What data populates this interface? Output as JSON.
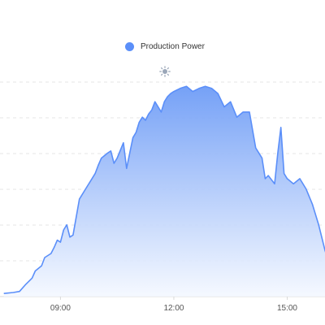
{
  "chart_data": {
    "type": "area",
    "title": "",
    "xlabel": "",
    "ylabel": "",
    "legend": {
      "position": "top",
      "entries": [
        "Production Power"
      ]
    },
    "weather_icon": "sun-icon",
    "colors": {
      "line": "#5b8ff9",
      "fill_top": "#6e9cf6",
      "fill_bottom": "#f4f8ff",
      "grid": "#e6e6e6"
    },
    "grid": true,
    "x_ticks": [
      "09:00",
      "12:00",
      "15:00"
    ],
    "series": [
      {
        "name": "Production Power",
        "x": [
          "07:30",
          "07:45",
          "07:55",
          "08:05",
          "08:15",
          "08:20",
          "08:30",
          "08:35",
          "08:45",
          "08:50",
          "08:55",
          "09:00",
          "09:05",
          "09:10",
          "09:15",
          "09:20",
          "09:30",
          "09:40",
          "09:50",
          "09:55",
          "10:00",
          "10:05",
          "10:15",
          "10:20",
          "10:25",
          "10:30",
          "10:40",
          "10:45",
          "10:50",
          "10:55",
          "11:00",
          "11:05",
          "11:10",
          "11:15",
          "11:20",
          "11:25",
          "11:30",
          "11:35",
          "11:40",
          "11:45",
          "11:50",
          "11:55",
          "12:00",
          "12:10",
          "12:20",
          "12:30",
          "12:40",
          "12:50",
          "13:00",
          "13:10",
          "13:20",
          "13:30",
          "13:40",
          "13:50",
          "14:00",
          "14:10",
          "14:15",
          "14:20",
          "14:25",
          "14:30",
          "14:40",
          "14:45",
          "14:50",
          "14:55",
          "15:00",
          "15:10",
          "15:20",
          "15:30",
          "15:40",
          "15:50",
          "16:00",
          "16:10",
          "16:15"
        ],
        "y": [
          3,
          4,
          5,
          12,
          18,
          25,
          30,
          38,
          42,
          48,
          55,
          53,
          65,
          70,
          58,
          60,
          95,
          105,
          115,
          120,
          128,
          135,
          140,
          142,
          130,
          135,
          150,
          125,
          140,
          155,
          160,
          170,
          175,
          172,
          178,
          182,
          190,
          185,
          180,
          190,
          195,
          198,
          200,
          203,
          205,
          200,
          203,
          205,
          203,
          198,
          185,
          190,
          175,
          180,
          180,
          145,
          140,
          135,
          115,
          118,
          110,
          140,
          165,
          120,
          115,
          110,
          115,
          105,
          90,
          70,
          45,
          25,
          20
        ]
      }
    ]
  }
}
